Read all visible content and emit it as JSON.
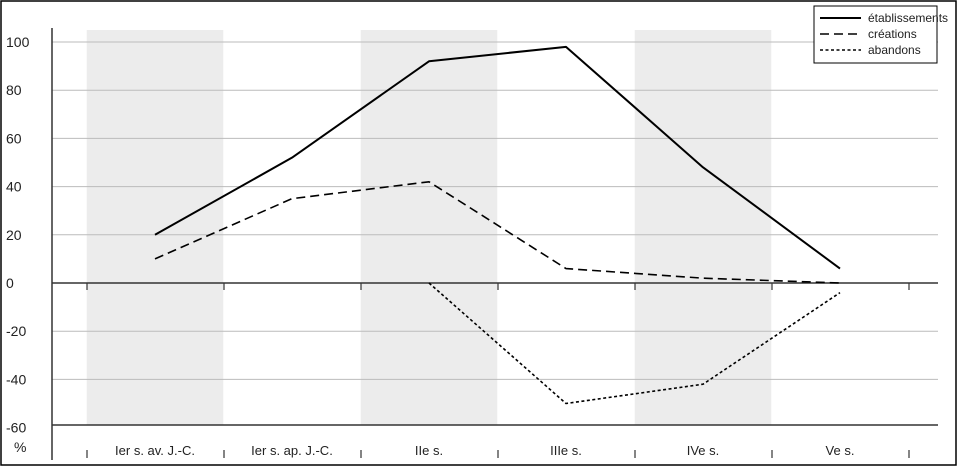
{
  "chart_data": {
    "type": "line",
    "title": "",
    "xlabel": "",
    "ylabel": "%",
    "ylim": [
      -60,
      100
    ],
    "yticks": [
      "100",
      "80",
      "60",
      "40",
      "20",
      "0",
      "-20",
      "-40",
      "-60"
    ],
    "grid": true,
    "legend_position": "top-right",
    "categories": [
      "Ier s. av. J.-C.",
      "Ier s. ap. J.-C.",
      "IIe s.",
      "IIIe s.",
      "IVe s.",
      "Ve s."
    ],
    "series": [
      {
        "name": "établissements",
        "style": "solid",
        "values": [
          20,
          52,
          92,
          98,
          48,
          6
        ]
      },
      {
        "name": "créations",
        "style": "dashed",
        "values": [
          10,
          35,
          42,
          6,
          2,
          0
        ]
      },
      {
        "name": "abandons",
        "style": "dotted",
        "values": [
          null,
          null,
          0,
          -50,
          -42,
          -4
        ]
      }
    ],
    "colors": {
      "line": "#000000",
      "band": "#ececec",
      "grid": "#bbbbbb",
      "axis": "#333333"
    }
  }
}
